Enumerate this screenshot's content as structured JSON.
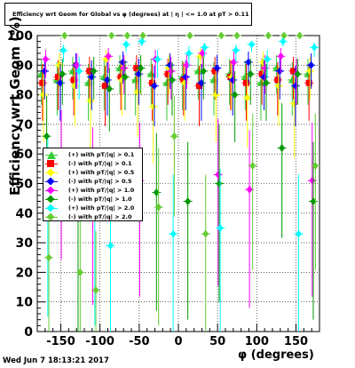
{
  "title": "Efficiency wrt Geom for Global vs φ (degrees) at | η | <= 1.0 at pT > 0.11",
  "timestamp": "Wed Jun  7 18:13:21 2017",
  "chart_data": {
    "type": "scatter",
    "title": "Efficiency wrt Geom for Global vs φ (degrees) at | η | <= 1.0 at pT > 0.11",
    "xlabel": "φ (degrees)",
    "ylabel": "Efficiency wrt Geom (%)",
    "xlim": [
      -180,
      180
    ],
    "ylim": [
      0,
      100
    ],
    "xticks": [
      -150,
      -100,
      -50,
      0,
      50,
      100,
      150
    ],
    "yticks": [
      0,
      10,
      20,
      30,
      40,
      50,
      60,
      70,
      80,
      90,
      100
    ],
    "grid": true,
    "legend_position": "middle-left",
    "series": [
      {
        "name": "(+) with pT/|q| > 0.1",
        "color": "#33cc33",
        "marker": "triangle",
        "x": [
          -170,
          -150,
          -130,
          -110,
          -90,
          -70,
          -50,
          -30,
          -10,
          10,
          30,
          50,
          70,
          90,
          110,
          130,
          150,
          170
        ],
        "y": [
          87,
          85,
          88,
          84,
          86,
          89,
          85,
          87,
          84,
          86,
          88,
          85,
          87,
          86,
          84,
          89,
          85,
          87
        ]
      },
      {
        "name": "(-) with pT/|q| > 0.1",
        "color": "#ff0000",
        "marker": "square",
        "x": [
          -170,
          -150,
          -130,
          -110,
          -90,
          -70,
          -50,
          -30,
          -10,
          10,
          30,
          50,
          70,
          90,
          110,
          130,
          150,
          170
        ],
        "y": [
          84,
          86,
          85,
          88,
          83,
          86,
          89,
          84,
          87,
          85,
          83,
          88,
          86,
          84,
          87,
          85,
          88,
          84
        ]
      },
      {
        "name": "(+) with pT/|q| > 0.5",
        "color": "#ffff00",
        "marker": "diamond",
        "x": [
          -170,
          -150,
          -130,
          -110,
          -90,
          -70,
          -50,
          -30,
          -10,
          10,
          30,
          50,
          70,
          90,
          110,
          130,
          150,
          170
        ],
        "y": [
          80,
          90,
          83,
          78,
          92,
          85,
          81,
          76,
          89,
          84,
          93,
          80,
          86,
          79,
          91,
          83,
          77,
          88
        ]
      },
      {
        "name": "(-) with pT/|q| > 0.5",
        "color": "#0000ff",
        "marker": "diamond",
        "x": [
          -170,
          -150,
          -130,
          -110,
          -90,
          -70,
          -50,
          -30,
          -10,
          10,
          30,
          50,
          70,
          90,
          110,
          130,
          150,
          170
        ],
        "y": [
          88,
          84,
          90,
          86,
          85,
          91,
          87,
          83,
          90,
          86,
          84,
          89,
          85,
          91,
          86,
          88,
          83,
          90
        ]
      },
      {
        "name": "(+) with pT/|q| > 1.0",
        "color": "#ff00ff",
        "marker": "diamond",
        "x": [
          -170,
          -150,
          -130,
          -110,
          -90,
          -70,
          -50,
          -30,
          -10,
          10,
          30,
          50,
          70,
          90,
          110,
          130,
          150,
          170
        ],
        "y": [
          92,
          58,
          90,
          49,
          93,
          89,
          51,
          92,
          88,
          90,
          94,
          53,
          91,
          48,
          89,
          93,
          87,
          51
        ]
      },
      {
        "name": "(-) with pT/|q| > 1.0",
        "color": "#009900",
        "marker": "diamond",
        "x": [
          -170,
          -150,
          -130,
          -110,
          -90,
          -70,
          -50,
          -30,
          -10,
          10,
          30,
          50,
          70,
          90,
          110,
          130,
          150,
          170
        ],
        "y": [
          66,
          87,
          40,
          88,
          82,
          86,
          89,
          47,
          85,
          44,
          88,
          50,
          80,
          87,
          84,
          62,
          87,
          44
        ]
      },
      {
        "name": "(+) with pT/|q| > 2.0",
        "color": "#00ffff",
        "marker": "diamond",
        "x": [
          -170,
          -150,
          -130,
          -110,
          -90,
          -70,
          -50,
          -30,
          -10,
          10,
          30,
          50,
          70,
          90,
          110,
          130,
          150,
          170
        ],
        "y": [
          45,
          95,
          88,
          42,
          29,
          97,
          98,
          92,
          33,
          94,
          96,
          35,
          95,
          97,
          92,
          98,
          33,
          96
        ]
      },
      {
        "name": "(-) with pT/|q| > 2.0",
        "color": "#66cc33",
        "marker": "diamond",
        "x": [
          -170,
          -150,
          -130,
          -110,
          -90,
          -70,
          -50,
          -30,
          -10,
          10,
          30,
          50,
          70,
          90,
          110,
          130,
          150,
          170
        ],
        "y": [
          25,
          100,
          20,
          14,
          100,
          100,
          100,
          42,
          66,
          100,
          33,
          100,
          100,
          56,
          100,
          100,
          100,
          56
        ]
      }
    ]
  }
}
